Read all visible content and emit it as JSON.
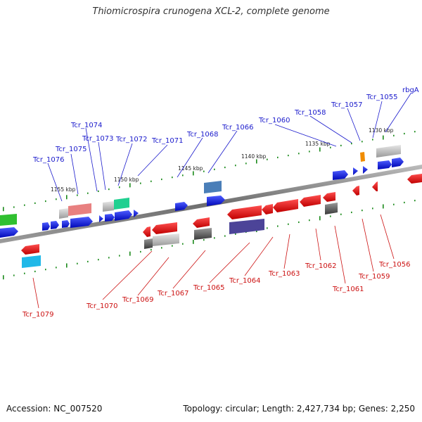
{
  "title": "Thiomicrospira crunogena XCL-2, complete genome",
  "footer": {
    "accession": "Accession: NC_007520",
    "summary": "Topology: circular; Length: 2,427,734 bp; Genes: 2,250"
  },
  "ticks": [
    "1155 kbp",
    "1150 kbp",
    "1145 kbp",
    "1140 kbp",
    "1135 kbp",
    "1130 kbp"
  ],
  "top_labels": [
    "Tcr_1076",
    "Tcr_1075",
    "Tcr_1074",
    "Tcr_1073",
    "Tcr_1072",
    "Tcr_1071",
    "Tcr_1068",
    "Tcr_1066",
    "Tcr_1060",
    "Tcr_1058",
    "Tcr_1057",
    "Tcr_1055",
    "rbgA"
  ],
  "bottom_labels": [
    "Tcr_1079",
    "Tcr_1070",
    "Tcr_1069",
    "Tcr_1067",
    "Tcr_1065",
    "Tcr_1064",
    "Tcr_1063",
    "Tcr_1062",
    "Tcr_1061",
    "Tcr_1059",
    "Tcr_1056"
  ],
  "colors": {
    "backbone": "#888888",
    "forward_gene": "#0a16d8",
    "reverse_gene": "#e00000",
    "tick_dot": "#1a8a1a",
    "top_label": "#1a1acc",
    "bottom_label": "#cc1111"
  }
}
